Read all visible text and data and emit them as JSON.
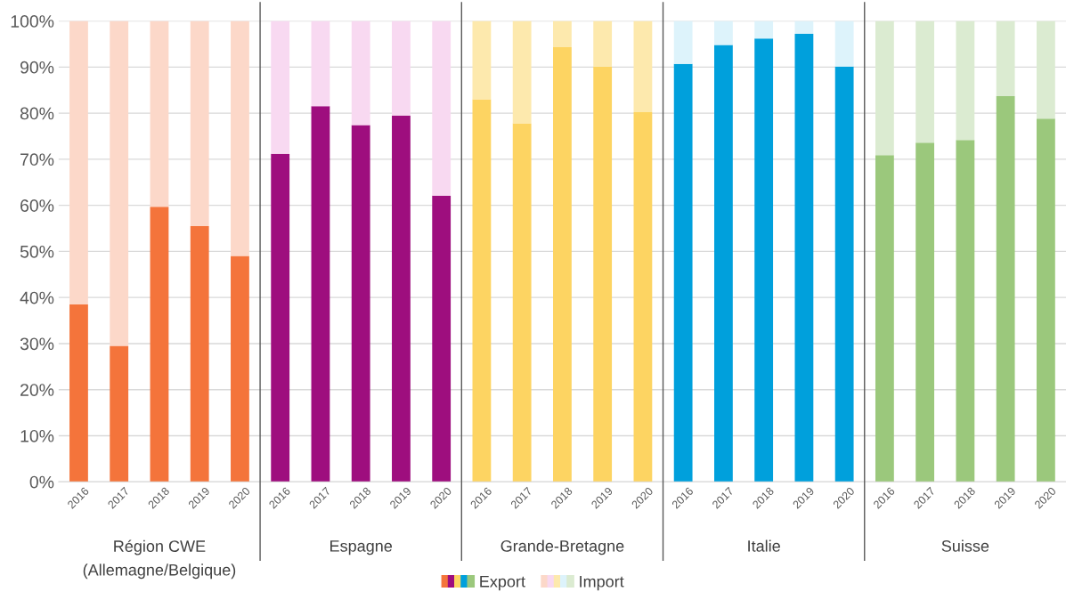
{
  "chart_data": {
    "type": "bar",
    "stacked": true,
    "categories": [
      "2016",
      "2017",
      "2018",
      "2019",
      "2020",
      "2016",
      "2017",
      "2018",
      "2019",
      "2020",
      "2016",
      "2017",
      "2018",
      "2019",
      "2020",
      "2016",
      "2017",
      "2018",
      "2019",
      "2020",
      "2016",
      "2017",
      "2018",
      "2019",
      "2020"
    ],
    "series": [
      {
        "name": "Export",
        "values": [
          38.5,
          29.5,
          59.7,
          55.5,
          49.0,
          71.2,
          81.5,
          77.4,
          79.5,
          62.1,
          83.0,
          77.8,
          94.3,
          90.1,
          80.2,
          90.7,
          94.8,
          96.2,
          97.2,
          90.1,
          70.9,
          73.6,
          74.2,
          83.7,
          78.8
        ],
        "colors": [
          "#f4743b",
          "#f4743b",
          "#f4743b",
          "#f4743b",
          "#f4743b",
          "#9e0e7e",
          "#9e0e7e",
          "#9e0e7e",
          "#9e0e7e",
          "#9e0e7e",
          "#fdd462",
          "#fdd462",
          "#fdd462",
          "#fdd462",
          "#fdd462",
          "#00a0dc",
          "#00a0dc",
          "#00a0dc",
          "#00a0dc",
          "#00a0dc",
          "#9bc87c",
          "#9bc87c",
          "#9bc87c",
          "#9bc87c",
          "#9bc87c"
        ]
      },
      {
        "name": "Import",
        "values": [
          61.5,
          70.5,
          40.3,
          44.5,
          51.0,
          28.8,
          18.5,
          22.6,
          20.5,
          37.9,
          17.0,
          22.2,
          5.7,
          9.9,
          19.8,
          9.3,
          5.2,
          3.8,
          2.8,
          9.9,
          29.1,
          26.4,
          25.8,
          16.3,
          21.2
        ],
        "colors": [
          "#fcd8c9",
          "#fcd8c9",
          "#fcd8c9",
          "#fcd8c9",
          "#fcd8c9",
          "#f8d9f1",
          "#f8d9f1",
          "#f8d9f1",
          "#f8d9f1",
          "#f8d9f1",
          "#fde9ad",
          "#fde9ad",
          "#fde9ad",
          "#fde9ad",
          "#fde9ad",
          "#ddf3fb",
          "#ddf3fb",
          "#ddf3fb",
          "#ddf3fb",
          "#ddf3fb",
          "#dbebd1",
          "#dbebd1",
          "#dbebd1",
          "#dbebd1",
          "#dbebd1"
        ]
      }
    ],
    "annotations": [
      "Région CWE\n(Allemagne/Belgique)",
      "Espagne",
      "Grande-Bretagne",
      "Italie",
      "Suisse"
    ],
    "ylim": [
      0,
      100
    ],
    "yticks": [
      {
        "value": 0,
        "label": "0%"
      },
      {
        "value": 10,
        "label": "10%"
      },
      {
        "value": 20,
        "label": "20%"
      },
      {
        "value": 30,
        "label": "30%"
      },
      {
        "value": 40,
        "label": "40%"
      },
      {
        "value": 50,
        "label": "50%"
      },
      {
        "value": 60,
        "label": "60%"
      },
      {
        "value": 70,
        "label": "70%"
      },
      {
        "value": 80,
        "label": "80%"
      },
      {
        "value": 90,
        "label": "90%"
      },
      {
        "value": 100,
        "label": "100%"
      }
    ],
    "grid": "y",
    "legend": "bottom"
  }
}
